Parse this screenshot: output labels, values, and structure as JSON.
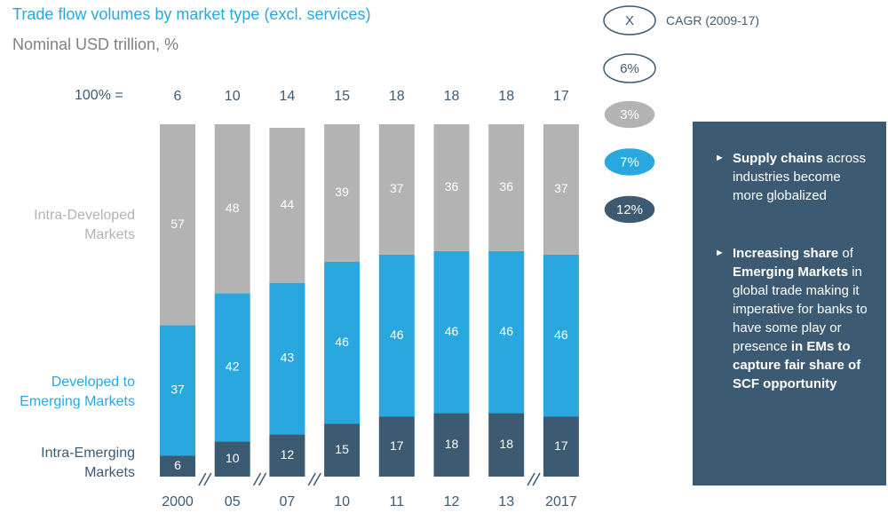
{
  "chart_data": {
    "type": "stacked_bar_100",
    "title": "Trade flow volumes by market type (excl. services)",
    "subtitle": "Nominal USD trillion, %",
    "total_label": "100% =",
    "categories": [
      "2000",
      "05",
      "07",
      "10",
      "11",
      "12",
      "13",
      "2017"
    ],
    "totals": [
      6,
      10,
      14,
      15,
      18,
      18,
      18,
      17
    ],
    "ylim": [
      0,
      100
    ],
    "axis_breaks_after": [
      0,
      1,
      2,
      6
    ],
    "cagr_key": "X",
    "cagr_title": "CAGR (2009-17)",
    "total_cagr": 6,
    "total_cagr_label": "6%",
    "series": [
      {
        "name": "Intra-Emerging Markets",
        "color": "#3d5a73",
        "values": [
          6,
          10,
          12,
          15,
          17,
          18,
          18,
          17
        ],
        "cagr": 12,
        "cagr_label": "12%"
      },
      {
        "name": "Developed to Emerging Markets",
        "color": "#29a8e0",
        "values": [
          37,
          42,
          43,
          46,
          46,
          46,
          46,
          46
        ],
        "cagr": 7,
        "cagr_label": "7%"
      },
      {
        "name": "Intra-Developed Markets",
        "color": "#b3b3b3",
        "values": [
          57,
          48,
          44,
          39,
          37,
          36,
          36,
          37
        ],
        "cagr": 3,
        "cagr_label": "3%"
      }
    ],
    "notes": [
      [
        {
          "text": "Supply chains",
          "bold": true
        },
        {
          "text": " across industries become more globalized",
          "bold": false
        }
      ],
      [
        {
          "text": "Increasing share",
          "bold": true
        },
        {
          "text": " of ",
          "bold": false
        },
        {
          "text": "Emerging Markets",
          "bold": true
        },
        {
          "text": " in global trade making it imperative for banks to have some play or presence ",
          "bold": false
        },
        {
          "text": "in EMs to capture fair share of SCF opportunity",
          "bold": true
        }
      ]
    ]
  }
}
